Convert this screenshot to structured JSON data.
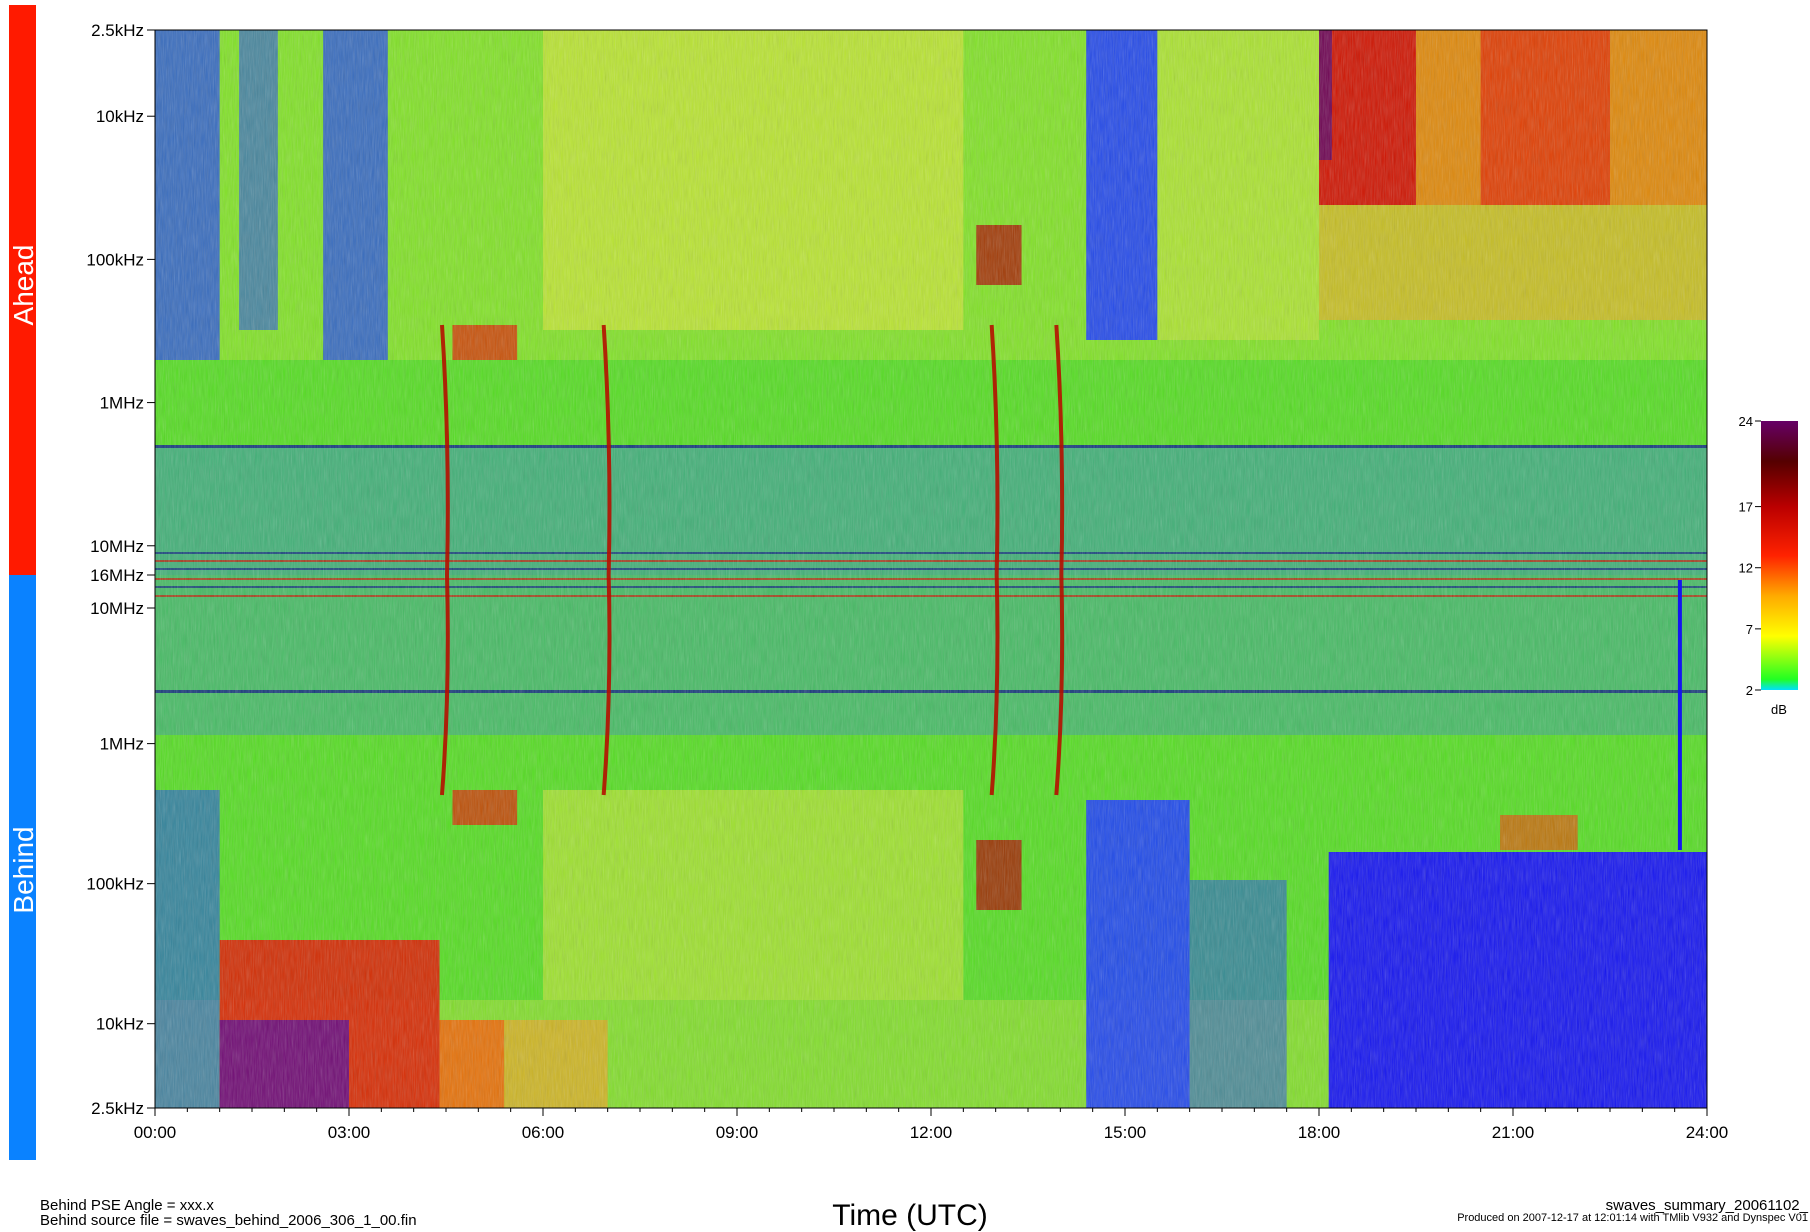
{
  "chart_data": {
    "type": "heatmap",
    "title": "",
    "xlabel": "Time (UTC)",
    "x_ticks": [
      "00:00",
      "03:00",
      "06:00",
      "09:00",
      "12:00",
      "15:00",
      "18:00",
      "21:00",
      "24:00"
    ],
    "xlim": [
      0,
      24
    ],
    "panels": [
      {
        "name": "Ahead",
        "color": "#ff1a00",
        "y_scale": "log",
        "y_ticks": [
          "2.5kHz",
          "10kHz",
          "100kHz",
          "1MHz",
          "10MHz",
          "16MHz"
        ],
        "ylim_hz": [
          2500,
          16000000
        ]
      },
      {
        "name": "Behind",
        "color": "#0a82ff",
        "y_scale": "log",
        "y_ticks": [
          "10MHz",
          "1MHz",
          "100kHz",
          "10kHz",
          "2.5kHz"
        ],
        "ylim_hz": [
          16000000,
          2500
        ]
      }
    ],
    "colorbar": {
      "label": "dB",
      "ticks": [
        2,
        7,
        12,
        17,
        24
      ],
      "range": [
        2,
        24
      ]
    },
    "features": [
      {
        "kind": "type-iii-burst",
        "time_h": 4.5
      },
      {
        "kind": "type-iii-burst",
        "time_h": 7.0
      },
      {
        "kind": "type-iii-burst",
        "time_h": 13.0
      },
      {
        "kind": "type-iii-burst",
        "time_h": 14.0
      }
    ]
  },
  "footer": {
    "left_line1": "Behind PSE Angle = xxx.x",
    "left_line2": "Behind source file = swaves_behind_2006_306_1_00.fin",
    "right_filename": "swaves_summary_20061102_",
    "right_produced": "Produced on 2007-12-17 at 12:01:14 with TMlib V932 and Dynspec V01"
  }
}
